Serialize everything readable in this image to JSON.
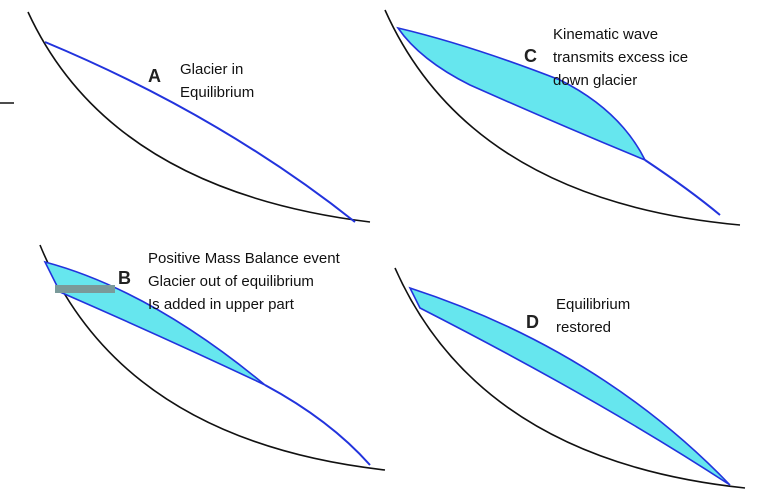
{
  "panels": [
    {
      "letter": "A",
      "lines": [
        "Glacier in",
        "Equilibrium"
      ]
    },
    {
      "letter": "C",
      "lines": [
        "Kinematic wave",
        "transmits excess ice",
        "down glacier"
      ]
    },
    {
      "letter": "B",
      "lines": [
        "Positive Mass Balance event",
        "Glacier out of equilibrium",
        "Is added in upper part"
      ]
    },
    {
      "letter": "D",
      "lines": [
        "Equilibrium",
        "restored"
      ]
    }
  ]
}
